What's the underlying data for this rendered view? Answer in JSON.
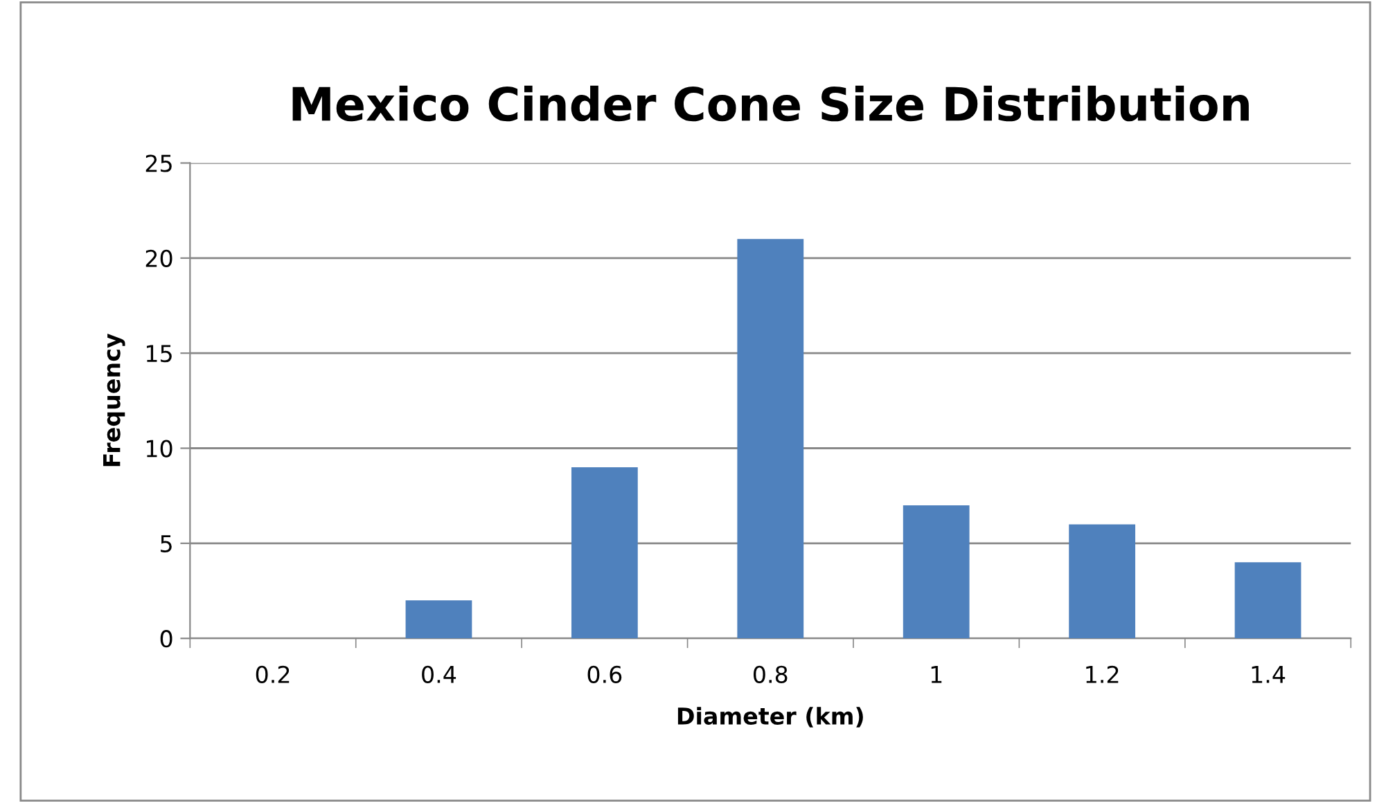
{
  "chart_data": {
    "type": "bar",
    "title": "Mexico Cinder Cone Size Distribution",
    "xlabel": "Diameter (km)",
    "ylabel": "Frequency",
    "categories": [
      "0.2",
      "0.4",
      "0.6",
      "0.8",
      "1",
      "1.2",
      "1.4"
    ],
    "values": [
      0,
      2,
      9,
      21,
      7,
      6,
      4
    ],
    "color": "#4f81bd",
    "ylim": [
      0,
      25
    ],
    "yticks": [
      0,
      5,
      10,
      15,
      20,
      25
    ],
    "grid": "y"
  }
}
